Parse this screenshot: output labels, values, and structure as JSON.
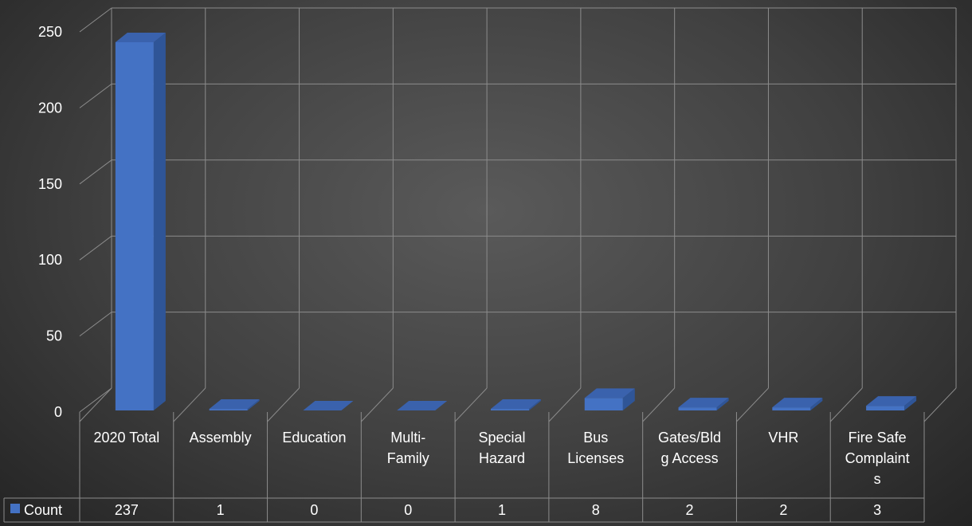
{
  "chart_data": {
    "type": "bar",
    "style": "3d-column-with-data-table",
    "categories": [
      [
        "2020 Total"
      ],
      [
        "Assembly"
      ],
      [
        "Education"
      ],
      [
        "Multi-",
        "Family"
      ],
      [
        "Special",
        "Hazard"
      ],
      [
        "Bus",
        "Licenses"
      ],
      [
        "Gates/Bld",
        "g Access"
      ],
      [
        "VHR"
      ],
      [
        "Fire Safe",
        "Complaint",
        "s"
      ]
    ],
    "series": [
      {
        "name": "Count",
        "values": [
          237,
          1,
          0,
          0,
          1,
          8,
          2,
          2,
          3
        ]
      }
    ],
    "y_ticks": [
      "0",
      "50",
      "100",
      "150",
      "200",
      "250"
    ],
    "ylim": [
      0,
      250
    ],
    "grid": true,
    "legend": "data-table"
  },
  "colors": {
    "bar_front": "#4472c4",
    "bar_side": "#2f5597",
    "bar_top": "#3a62ad",
    "grid": "#8c8c8c",
    "text": "#ffffff"
  }
}
